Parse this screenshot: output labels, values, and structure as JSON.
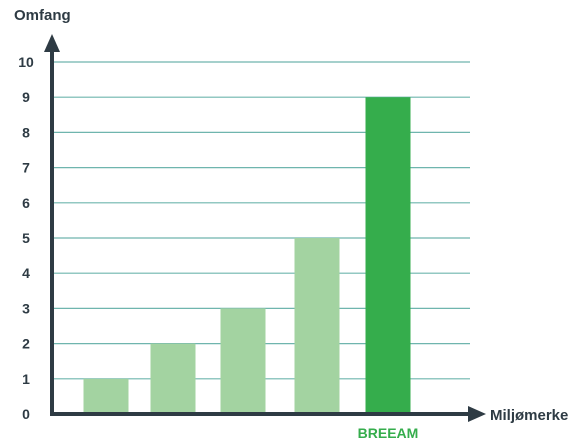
{
  "chart_data": {
    "type": "bar",
    "title": "",
    "xlabel": "Miljømerke",
    "ylabel": "Omfang",
    "ylim": [
      0,
      10
    ],
    "yticks": [
      0,
      1,
      2,
      3,
      4,
      5,
      6,
      7,
      8,
      9,
      10
    ],
    "grid": true,
    "categories": [
      "",
      "",
      "",
      "",
      "BREEAM"
    ],
    "values": [
      1,
      2,
      3,
      5,
      9
    ],
    "colors": [
      "#a3d3a1",
      "#a3d3a1",
      "#a3d3a1",
      "#a3d3a1",
      "#35ad4c"
    ],
    "label_colors": [
      "#35ad4c",
      "#35ad4c",
      "#35ad4c",
      "#35ad4c",
      "#35ad4c"
    ],
    "grid_color": "#6fb5ae",
    "axis_color": "#2e3b44"
  }
}
